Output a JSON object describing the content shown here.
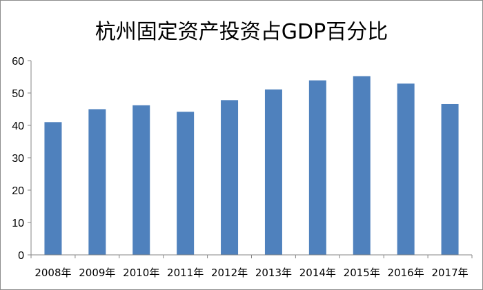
{
  "chart_data": {
    "type": "bar",
    "title": "杭州固定资产投资占GDP百分比",
    "xlabel": "",
    "ylabel": "",
    "categories": [
      "2008年",
      "2009年",
      "2010年",
      "2011年",
      "2012年",
      "2013年",
      "2014年",
      "2015年",
      "2016年",
      "2017年"
    ],
    "values": [
      41.0,
      45.0,
      46.2,
      44.2,
      47.8,
      51.1,
      53.9,
      55.2,
      52.9,
      46.6
    ],
    "ylim": [
      0,
      60
    ],
    "yticks": [
      0,
      10,
      20,
      30,
      40,
      50,
      60
    ],
    "yticks_labels": [
      "0",
      "10",
      "20",
      "30",
      "40",
      "50",
      "60"
    ],
    "grid": false,
    "legend": "none",
    "bar_color": "#4f81bd",
    "axis_color": "#868686"
  }
}
